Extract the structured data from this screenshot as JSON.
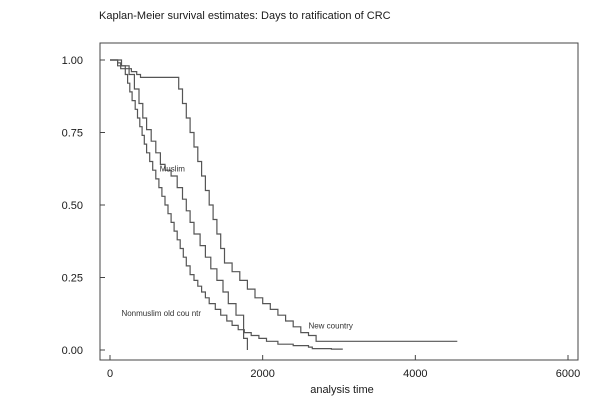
{
  "chart_data": {
    "type": "line",
    "title": "Kaplan-Meier survival estimates: Days to ratification of CRC",
    "xlabel": "analysis time",
    "ylabel": "",
    "xlim": [
      0,
      6000
    ],
    "ylim": [
      0,
      1
    ],
    "x_ticks": [
      0,
      2000,
      4000,
      6000
    ],
    "x_tick_labels": [
      "0",
      "2000",
      "4000",
      "6000"
    ],
    "y_ticks": [
      0,
      0.25,
      0.5,
      0.75,
      1
    ],
    "y_tick_labels": [
      "0.00",
      "0.25",
      "0.50",
      "0.75",
      "1.00"
    ],
    "grid": false,
    "legend": "none",
    "line_color": "#555555",
    "series": [
      {
        "x": [
          0,
          100,
          140,
          200,
          230,
          260,
          290,
          330,
          360,
          390,
          420,
          450,
          480,
          520,
          560,
          600,
          640,
          680,
          720,
          760,
          800,
          840,
          880,
          920,
          960,
          1000,
          1050,
          1100,
          1150,
          1200,
          1250,
          1300,
          1380,
          1450,
          1530,
          1600,
          1680,
          1760,
          1850,
          1950,
          2050,
          2200,
          2400,
          2600,
          2650,
          2700,
          2900,
          3050
        ],
        "y": [
          1.0,
          0.99,
          0.97,
          0.95,
          0.92,
          0.89,
          0.86,
          0.83,
          0.8,
          0.77,
          0.74,
          0.71,
          0.68,
          0.65,
          0.62,
          0.59,
          0.56,
          0.53,
          0.5,
          0.47,
          0.44,
          0.41,
          0.38,
          0.35,
          0.32,
          0.29,
          0.26,
          0.24,
          0.22,
          0.2,
          0.18,
          0.16,
          0.14,
          0.12,
          0.1,
          0.085,
          0.07,
          0.06,
          0.05,
          0.04,
          0.03,
          0.02,
          0.015,
          0.01,
          0.005,
          0.005,
          0.003,
          0.003
        ]
      },
      {
        "x": [
          0,
          150,
          250,
          320,
          380,
          430,
          480,
          540,
          600,
          660,
          720,
          800,
          880,
          950,
          1000,
          1050,
          1100,
          1180,
          1250,
          1320,
          1400,
          1480,
          1550,
          1650,
          1750,
          1800
        ],
        "y": [
          1.0,
          0.98,
          0.95,
          0.9,
          0.85,
          0.8,
          0.76,
          0.72,
          0.68,
          0.64,
          0.62,
          0.6,
          0.56,
          0.52,
          0.48,
          0.44,
          0.4,
          0.36,
          0.32,
          0.28,
          0.24,
          0.2,
          0.16,
          0.12,
          0.04,
          0.0
        ]
      },
      {
        "x": [
          0,
          100,
          200,
          280,
          350,
          400,
          900,
          950,
          1000,
          1050,
          1100,
          1150,
          1200,
          1250,
          1300,
          1350,
          1400,
          1450,
          1500,
          1600,
          1700,
          1800,
          1900,
          2000,
          2100,
          2200,
          2300,
          2400,
          2500,
          2600,
          2700,
          4550
        ],
        "y": [
          1.0,
          0.98,
          0.97,
          0.96,
          0.95,
          0.94,
          0.9,
          0.85,
          0.8,
          0.75,
          0.7,
          0.65,
          0.6,
          0.55,
          0.5,
          0.45,
          0.4,
          0.35,
          0.3,
          0.27,
          0.24,
          0.21,
          0.18,
          0.16,
          0.14,
          0.12,
          0.1,
          0.08,
          0.06,
          0.05,
          0.03,
          0.03
        ]
      }
    ],
    "annotations": [
      {
        "text": "Muslim",
        "x": 650,
        "y": 0.615
      },
      {
        "text": "Nonmuslim old cou ntr",
        "x": 150,
        "y": 0.117
      },
      {
        "text": "New country",
        "x": 2600,
        "y": 0.075
      }
    ]
  }
}
